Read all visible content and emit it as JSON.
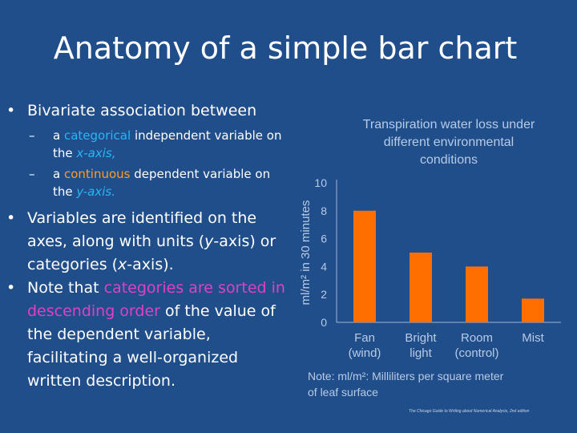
{
  "slide": {
    "title": "Anatomy of a simple bar chart",
    "bullet1": "Bivariate association between",
    "sub1": {
      "pre": "a ",
      "highlight": "categorical",
      "mid": " independent variable on the ",
      "axis": "x-axis,",
      "post": ""
    },
    "sub2": {
      "pre": "a ",
      "highlight": "continuous",
      "mid": " dependent variable on the ",
      "axis": "y-axis.",
      "post": ""
    },
    "bullet2": {
      "pre": "Variables are identified on the axes, along with units (",
      "y": "y",
      "mid": "-axis) or categories (",
      "x": "x",
      "post": "-axis)."
    },
    "bullet3": {
      "pre": "Note that ",
      "highlight": "categories are sorted in descending order",
      "post": " of the value of the dependent variable, facilitating a well-organized written description."
    },
    "bullet_symbol": "•",
    "dash_symbol": "–",
    "footer": "The Chicago Guide to Writing about Numerical Analysis, 2nd edition"
  },
  "colors": {
    "background": "#1f4e8a",
    "bar": "#ff6f00",
    "categorical": "#29b6f6",
    "continuous": "#ff9c2a",
    "sorted": "#e040c8",
    "chart_text": "#b8cbe6"
  },
  "chart_data": {
    "type": "bar",
    "title": [
      "Transpiration water loss under",
      "different environmental",
      "conditions"
    ],
    "ylabel": "ml/m² in 30 minutes",
    "xlabel": "",
    "categories": [
      [
        "Fan",
        "(wind)"
      ],
      [
        "Bright",
        "light"
      ],
      [
        "Room",
        "(control)"
      ],
      [
        "Mist",
        ""
      ]
    ],
    "values": [
      8.0,
      5.0,
      4.0,
      1.7
    ],
    "yticks": [
      0,
      2,
      4,
      6,
      8,
      10
    ],
    "ylim": [
      0,
      10
    ],
    "grid": false,
    "note": [
      "Note: ml/m²: Milliliters per square meter",
      "of leaf surface"
    ]
  }
}
